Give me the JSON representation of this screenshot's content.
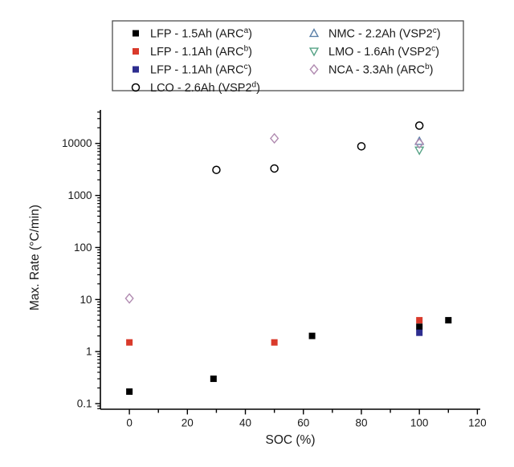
{
  "chart_data": {
    "type": "scatter",
    "title": "",
    "xlabel": "SOC (%)",
    "ylabel": "Max. Rate (°C/min)",
    "x_axis": {
      "min": -10,
      "max": 121,
      "major_ticks": [
        0,
        20,
        40,
        60,
        80,
        100,
        120
      ],
      "minor_ticks": [
        10,
        30,
        50,
        70,
        90,
        110
      ]
    },
    "y_axis": {
      "scale": "log",
      "min": 0.078,
      "max": 44000,
      "major_ticks": [
        0.1,
        1,
        10,
        100,
        1000,
        10000
      ],
      "tick_labels": [
        "0.1",
        "1",
        "10",
        "100",
        "1000",
        "10000"
      ]
    },
    "grid": false,
    "legend": {
      "position": "top-center",
      "columns": 2,
      "column_split": 4,
      "border_color": "#4d4d4d"
    },
    "series": [
      {
        "name_pre": "LFP - 1.5Ah (ARC",
        "name_sup": "a",
        "name_post": ")",
        "marker": "square-filled",
        "color": "#000000",
        "points": [
          [
            0,
            0.17
          ],
          [
            29,
            0.3
          ],
          [
            63,
            2.0
          ],
          [
            100,
            3.0
          ],
          [
            110,
            4.0
          ]
        ]
      },
      {
        "name_pre": "LFP - 1.1Ah (ARC",
        "name_sup": "b",
        "name_post": ")",
        "marker": "square-filled",
        "color": "#d93a2b",
        "points": [
          [
            0,
            1.5
          ],
          [
            50,
            1.5
          ],
          [
            100,
            4.0
          ]
        ]
      },
      {
        "name_pre": "LFP - 1.1Ah (ARC",
        "name_sup": "c",
        "name_post": ")",
        "marker": "square-filled",
        "color": "#2d2d8f",
        "points": [
          [
            100,
            2.3
          ]
        ]
      },
      {
        "name_pre": "LCO - 2.6Ah (VSP2",
        "name_sup": "d",
        "name_post": ")",
        "marker": "circle-open",
        "color": "#000000",
        "points": [
          [
            30,
            3100
          ],
          [
            50,
            3300
          ],
          [
            80,
            8800
          ],
          [
            100,
            22000
          ]
        ]
      },
      {
        "name_pre": "NMC - 2.2Ah (VSP2",
        "name_sup": "c",
        "name_post": ")",
        "marker": "triangle-up-open",
        "color": "#5b80a8",
        "points": [
          [
            100,
            11000
          ]
        ]
      },
      {
        "name_pre": "LMO - 1.6Ah (VSP2",
        "name_sup": "c",
        "name_post": ")",
        "marker": "triangle-down-open",
        "color": "#55a285",
        "points": [
          [
            100,
            7400
          ]
        ]
      },
      {
        "name_pre": "NCA - 3.3Ah (ARC",
        "name_sup": "b",
        "name_post": ")",
        "marker": "diamond-open",
        "color": "#b08ab0",
        "points": [
          [
            0,
            10.5
          ],
          [
            50,
            12500
          ],
          [
            100,
            10000
          ]
        ]
      }
    ]
  }
}
